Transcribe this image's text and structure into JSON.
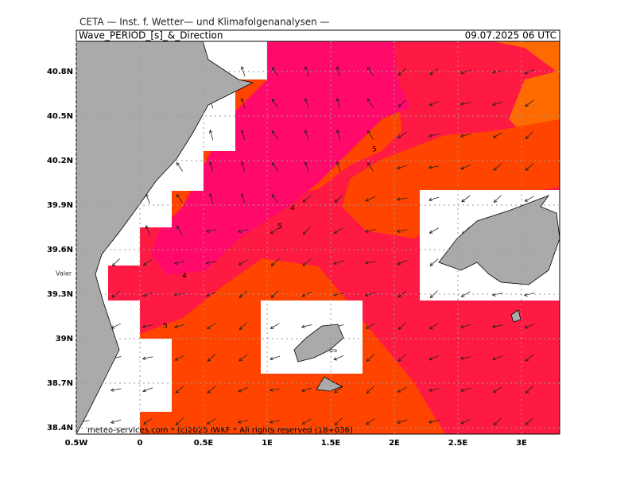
{
  "header": {
    "institute": "CETA — Inst. f. Wetter— und Klimafolgenanalysen —",
    "title": "Wave_PERIOD_[s]_&_Direction",
    "date": "09.07.2025 06 UTC"
  },
  "map": {
    "lon_ticks": [
      {
        "value": -0.5,
        "label": "0.5W"
      },
      0,
      {
        "value": 0.5,
        "label": "0.5E"
      },
      {
        "value": 1,
        "label": "1E"
      },
      {
        "value": 1.5,
        "label": "1.5E"
      },
      {
        "value": 2,
        "label": "2E"
      },
      {
        "value": 2.5,
        "label": "2.5E"
      },
      {
        "value": 3,
        "label": "3E"
      }
    ],
    "lat_ticks": [
      {
        "value": 40.8,
        "label": "40.8N"
      },
      {
        "value": 40.5,
        "label": "40.5N"
      },
      {
        "value": 40.2,
        "label": "40.2N"
      },
      {
        "value": 39.9,
        "label": "39.9N"
      },
      {
        "value": 39.6,
        "label": "39.6N"
      },
      {
        "value": 39.3,
        "label": "39.3N"
      },
      {
        "value": 39,
        "label": "39N"
      },
      {
        "value": 38.7,
        "label": "38.7N"
      },
      {
        "value": 38.4,
        "label": "38.4N"
      }
    ],
    "contour_labels": [
      "5",
      "4",
      "5",
      "4",
      "5"
    ],
    "place_labels": [
      "Valer",
      "Iza"
    ]
  },
  "footer": "meteo-services.com * (c)2025 IWKF * All rights reserved (18+036)"
}
